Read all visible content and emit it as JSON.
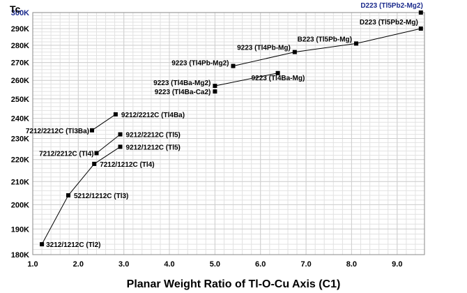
{
  "chart_data": {
    "type": "line",
    "title": "",
    "xlabel": "Planar Weight Ratio of Tl-O-Cu Axis (C1)",
    "ylabel": "Tc",
    "xlim": [
      1.0,
      9.6
    ],
    "ylim": [
      180,
      300
    ],
    "yscale": "log",
    "grid": true,
    "x_ticks": [
      {
        "value": 1.0,
        "label": "1.0"
      },
      {
        "value": 2.0,
        "label": "2.0"
      },
      {
        "value": 3.0,
        "label": "3.0"
      },
      {
        "value": 4.0,
        "label": "4.0"
      },
      {
        "value": 5.0,
        "label": "5.0"
      },
      {
        "value": 6.0,
        "label": "6.0"
      },
      {
        "value": 7.0,
        "label": "7.0"
      },
      {
        "value": 8.0,
        "label": "8.0"
      },
      {
        "value": 9.0,
        "label": "9.0"
      }
    ],
    "y_ticks": [
      {
        "value": 180,
        "label": "180K"
      },
      {
        "value": 190,
        "label": "190K"
      },
      {
        "value": 200,
        "label": "200K"
      },
      {
        "value": 210,
        "label": "210K"
      },
      {
        "value": 220,
        "label": "220K"
      },
      {
        "value": 230,
        "label": "230K"
      },
      {
        "value": 240,
        "label": "240K"
      },
      {
        "value": 250,
        "label": "250K"
      },
      {
        "value": 260,
        "label": "260K"
      },
      {
        "value": 270,
        "label": "270K"
      },
      {
        "value": 280,
        "label": "280K"
      },
      {
        "value": 290,
        "label": "290K"
      },
      {
        "value": 300,
        "label": "300K"
      }
    ],
    "series": [
      {
        "color": "#000000",
        "points": [
          {
            "x": 1.2,
            "y": 184,
            "label": "3212/1212C (Tl2)"
          },
          {
            "x": 1.78,
            "y": 204,
            "label": "5212/1212C (Tl3)"
          },
          {
            "x": 2.35,
            "y": 218,
            "label": "7212/1212C (Tl4)"
          },
          {
            "x": 2.92,
            "y": 226,
            "label": "9212/1212C (Tl5)"
          }
        ]
      },
      {
        "color": "#000000",
        "points": [
          {
            "x": 2.4,
            "y": 223,
            "label": "7212/2212C (Tl4)"
          },
          {
            "x": 2.92,
            "y": 232,
            "label": "9212/2212C (Tl5)"
          }
        ]
      },
      {
        "color": "#000000",
        "points": [
          {
            "x": 2.3,
            "y": 234,
            "label": "7212/2212C (Tl3Ba)"
          },
          {
            "x": 2.82,
            "y": 242,
            "label": "9212/2212C (Tl4Ba)"
          }
        ]
      },
      {
        "color": "#000000",
        "points": [
          {
            "x": 5.0,
            "y": 254,
            "label": "9223 (Tl4Ba-Ca2)"
          }
        ]
      },
      {
        "color": "#000000",
        "points": [
          {
            "x": 5.0,
            "y": 257,
            "label": "9223 (Tl4Ba-Mg2)"
          },
          {
            "x": 6.38,
            "y": 264,
            "label": "9223 (Tl4Ba-Mg)"
          }
        ]
      },
      {
        "color": "#000000",
        "points": [
          {
            "x": 5.4,
            "y": 268,
            "label": "9223 (Tl4Pb-Mg2)"
          },
          {
            "x": 6.75,
            "y": 276,
            "label": "9223 (Tl4Pb-Mg)"
          },
          {
            "x": 8.1,
            "y": 281,
            "label": "B223 (Tl5Pb-Mg)"
          },
          {
            "x": 9.52,
            "y": 290,
            "label": "D223 (Tl5Pb2-Mg)"
          }
        ]
      },
      {
        "color": "#1a2a8c",
        "points": [
          {
            "x": 9.52,
            "y": 300,
            "label": "D223 (Tl5Pb2-Mg2)"
          }
        ]
      }
    ]
  }
}
